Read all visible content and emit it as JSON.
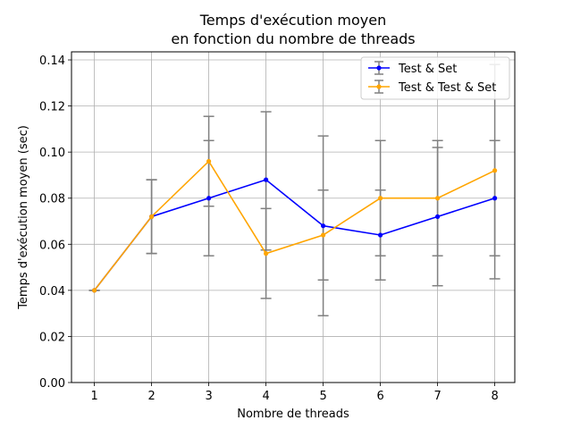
{
  "chart_data": {
    "type": "line",
    "title": [
      "Temps d'exécution moyen",
      "en fonction du nombre de threads"
    ],
    "xlabel": "Nombre de threads",
    "ylabel": "Temps d'exécution moyen (sec)",
    "x": [
      1,
      2,
      3,
      4,
      5,
      6,
      7,
      8
    ],
    "xlim": [
      0.6,
      8.35
    ],
    "ylim": [
      0,
      0.1435
    ],
    "xticks": [
      "1",
      "2",
      "3",
      "4",
      "5",
      "6",
      "7",
      "8"
    ],
    "yticks": [
      "0.00",
      "0.02",
      "0.04",
      "0.06",
      "0.08",
      "0.10",
      "0.12",
      "0.14"
    ],
    "grid": true,
    "legend_position": "top-right",
    "series": [
      {
        "name": "Test & Set",
        "color": "#0000ff",
        "values": [
          0.04,
          0.072,
          0.08,
          0.088,
          0.068,
          0.064,
          0.072,
          0.08
        ],
        "err_low": [
          0.04,
          0.056,
          0.055,
          0.0365,
          0.029,
          0.0445,
          0.042,
          0.045
        ],
        "err_high": [
          0.04,
          0.088,
          0.105,
          0.1175,
          0.107,
          0.0835,
          0.102,
          0.138
        ]
      },
      {
        "name": "Test & Test & Set",
        "color": "#ffa500",
        "values": [
          0.04,
          0.072,
          0.096,
          0.056,
          0.064,
          0.08,
          0.08,
          0.092
        ],
        "err_low": [
          0.04,
          0.056,
          0.0765,
          0.0575,
          0.0445,
          0.055,
          0.055,
          0.055
        ],
        "err_high": [
          0.04,
          0.088,
          0.1155,
          0.0755,
          0.0835,
          0.105,
          0.105,
          0.105
        ]
      }
    ],
    "errorbar_color": "#808080"
  }
}
